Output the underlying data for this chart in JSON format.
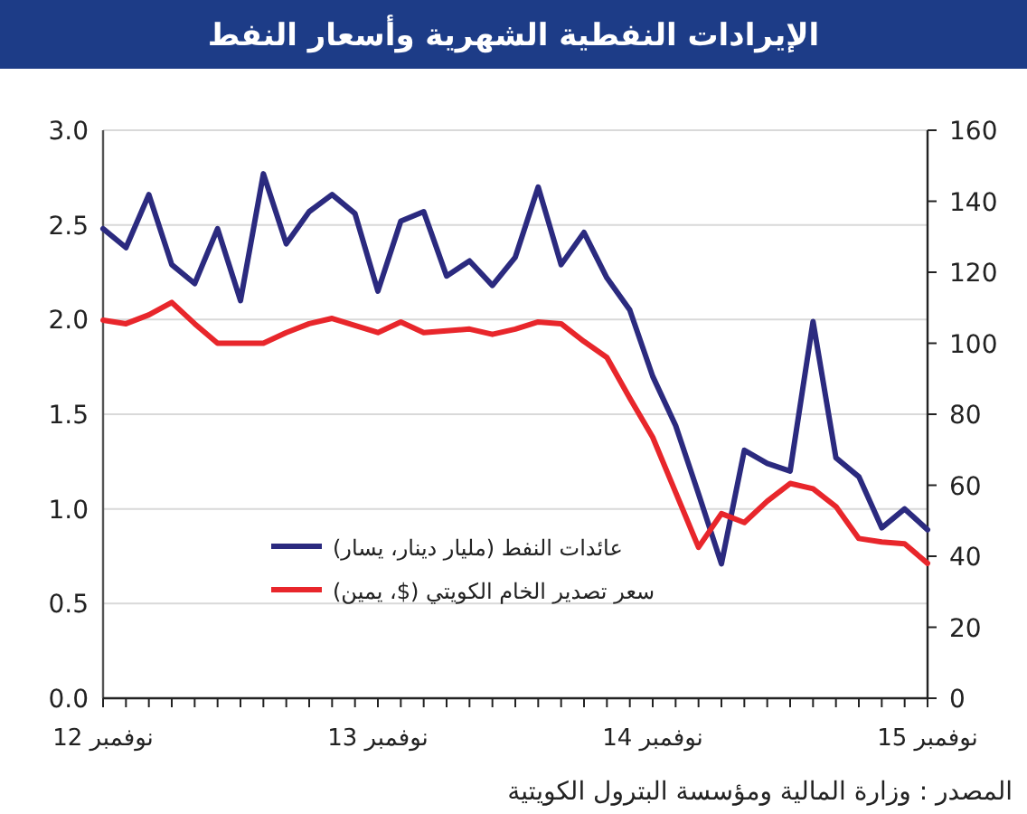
{
  "chart_data": {
    "type": "line",
    "title": "الإيرادات النفطية الشهرية وأسعار النفط",
    "x": [
      "2012-11",
      "2012-12",
      "2013-01",
      "2013-02",
      "2013-03",
      "2013-04",
      "2013-05",
      "2013-06",
      "2013-07",
      "2013-08",
      "2013-09",
      "2013-10",
      "2013-11",
      "2013-12",
      "2014-01",
      "2014-02",
      "2014-03",
      "2014-04",
      "2014-05",
      "2014-06",
      "2014-07",
      "2014-08",
      "2014-09",
      "2014-10",
      "2014-11",
      "2014-12",
      "2015-01",
      "2015-02",
      "2015-03",
      "2015-04",
      "2015-05",
      "2015-06",
      "2015-07",
      "2015-08",
      "2015-09",
      "2015-10",
      "2015-11"
    ],
    "series": [
      {
        "name": "عائدات النفط (مليار دينار، يسار)",
        "color": "#2b2a7f",
        "values": [
          2.48,
          2.38,
          2.66,
          2.29,
          2.19,
          2.48,
          2.1,
          2.77,
          2.4,
          2.57,
          2.66,
          2.56,
          2.15,
          2.52,
          2.57,
          2.23,
          2.31,
          2.18,
          2.33,
          2.7,
          2.29,
          2.46,
          2.22,
          2.05,
          1.7,
          1.44,
          1.08,
          0.71,
          1.31,
          1.24,
          1.2,
          1.99,
          1.27,
          1.17,
          0.9,
          1.0,
          0.89
        ]
      },
      {
        "name": "سعر تصدير الخام الكويتي ($، يمين)",
        "color": "#e8262b",
        "axis": "y2",
        "values": [
          106.5,
          105.5,
          108,
          111.5,
          105.5,
          100,
          100,
          100,
          103,
          105.5,
          107,
          105,
          103,
          106,
          103,
          103.5,
          104,
          102.5,
          104,
          106,
          105.5,
          100.5,
          96,
          84.5,
          73.5,
          58,
          42.5,
          52,
          49.5,
          55.5,
          60.5,
          59,
          54,
          45,
          44,
          43.5,
          38
        ]
      }
    ],
    "xlim": [
      "2012-11",
      "2015-11"
    ],
    "xticks": [
      {
        "value": "2012-11",
        "label": "نوفمبر 12"
      },
      {
        "value": "2012-12",
        "label": null
      },
      {
        "value": "2013-01",
        "label": null
      },
      {
        "value": "2013-02",
        "label": null
      },
      {
        "value": "2013-03",
        "label": null
      },
      {
        "value": "2013-04",
        "label": null
      },
      {
        "value": "2013-05",
        "label": null
      },
      {
        "value": "2013-06",
        "label": null
      },
      {
        "value": "2013-07",
        "label": null
      },
      {
        "value": "2013-08",
        "label": null
      },
      {
        "value": "2013-09",
        "label": null
      },
      {
        "value": "2013-10",
        "label": null
      },
      {
        "value": "2013-11",
        "label": "نوفمبر 13"
      },
      {
        "value": "2013-12",
        "label": null
      },
      {
        "value": "2014-01",
        "label": null
      },
      {
        "value": "2014-02",
        "label": null
      },
      {
        "value": "2014-03",
        "label": null
      },
      {
        "value": "2014-04",
        "label": null
      },
      {
        "value": "2014-05",
        "label": null
      },
      {
        "value": "2014-06",
        "label": null
      },
      {
        "value": "2014-07",
        "label": null
      },
      {
        "value": "2014-08",
        "label": null
      },
      {
        "value": "2014-09",
        "label": null
      },
      {
        "value": "2014-10",
        "label": null
      },
      {
        "value": "2014-11",
        "label": "نوفمبر 14"
      },
      {
        "value": "2014-12",
        "label": null
      },
      {
        "value": "2015-01",
        "label": null
      },
      {
        "value": "2015-02",
        "label": null
      },
      {
        "value": "2015-03",
        "label": null
      },
      {
        "value": "2015-04",
        "label": null
      },
      {
        "value": "2015-05",
        "label": null
      },
      {
        "value": "2015-06",
        "label": null
      },
      {
        "value": "2015-07",
        "label": null
      },
      {
        "value": "2015-08",
        "label": null
      },
      {
        "value": "2015-09",
        "label": null
      },
      {
        "value": "2015-10",
        "label": null
      },
      {
        "value": "2015-11",
        "label": "نوفمبر 15"
      }
    ],
    "ylim": [
      0,
      3
    ],
    "yticks": [
      {
        "value": 0,
        "label": "0.0"
      },
      {
        "value": 0.5,
        "label": "0.5"
      },
      {
        "value": 1,
        "label": "1.0"
      },
      {
        "value": 1.5,
        "label": "1.5"
      },
      {
        "value": 2,
        "label": "2.0"
      },
      {
        "value": 2.5,
        "label": "2.5"
      },
      {
        "value": 3,
        "label": "3.0"
      }
    ],
    "y2lim": [
      0,
      160
    ],
    "y2ticks": [
      0,
      20,
      40,
      60,
      80,
      100,
      120,
      140,
      160
    ],
    "grid": "y",
    "legend": "bottom",
    "annotations": [
      "المصدر : وزارة المالية ومؤسسة البترول الكويتية"
    ]
  }
}
